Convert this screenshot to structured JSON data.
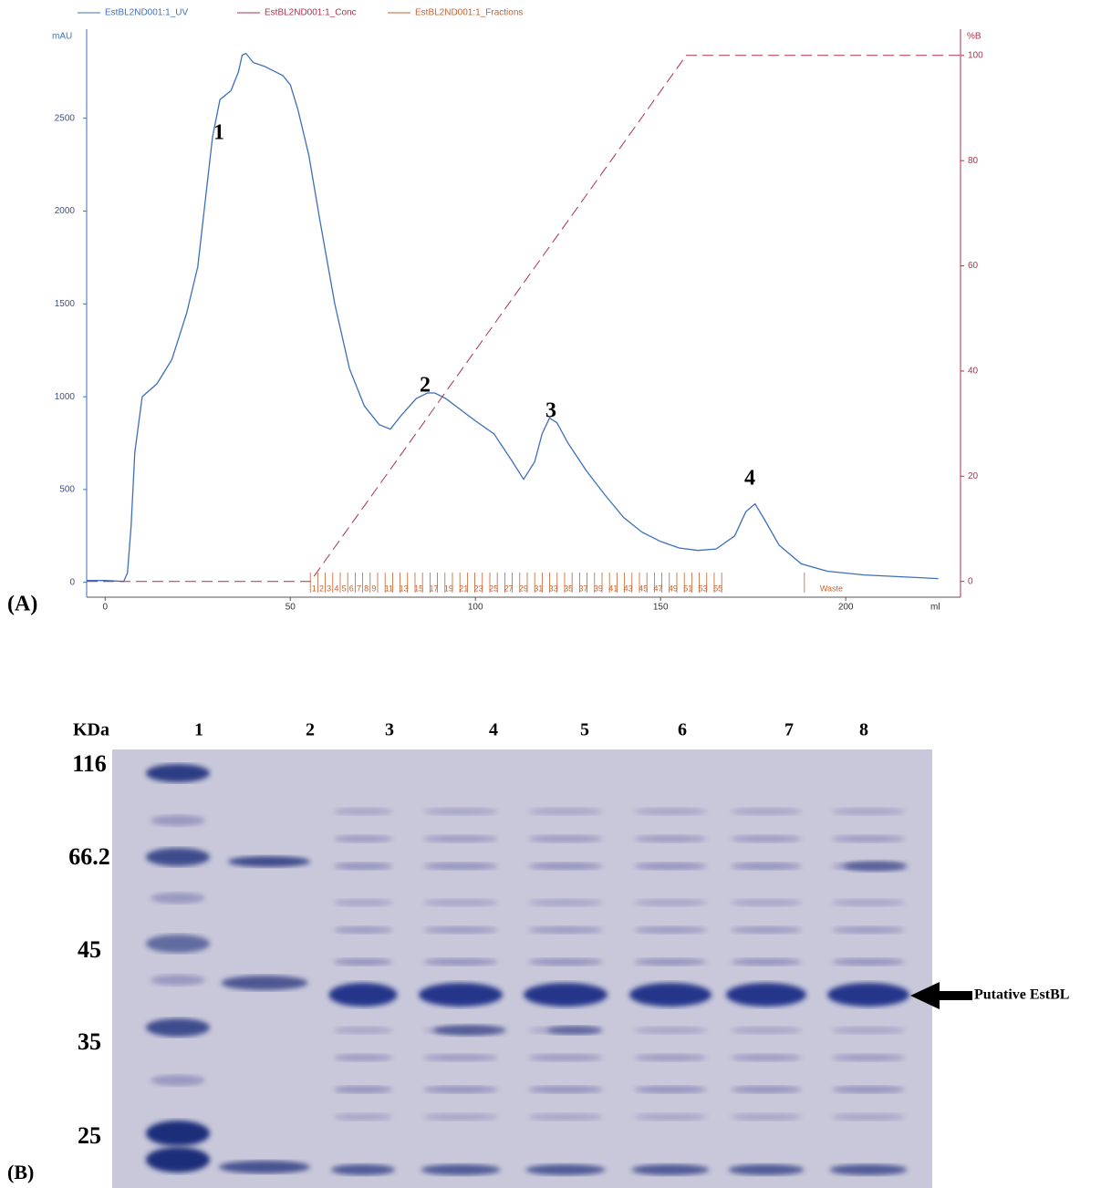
{
  "chart_data": {
    "type": "line",
    "xlabel": "ml",
    "ylabel": "mAU",
    "y2label": "%B",
    "xlim": [
      -5,
      231
    ],
    "ylim": [
      -80,
      2980
    ],
    "y2lim": [
      -3,
      105
    ],
    "xticks": [
      0,
      50,
      100,
      150,
      200
    ],
    "yticks": [
      0,
      500,
      1000,
      1500,
      2000,
      2500
    ],
    "y2ticks": [
      0,
      20,
      40,
      60,
      80,
      100
    ],
    "grid": false,
    "legend": "top",
    "series": [
      {
        "name": "EstBL2ND001:1_UV",
        "color": "#3d6fb8",
        "x": [
          -5,
          0,
          5,
          6,
          7,
          8,
          10,
          14,
          18,
          22,
          25,
          27,
          29,
          31,
          34,
          36,
          37,
          38,
          40,
          43,
          46,
          48,
          50,
          52,
          55,
          58,
          62,
          66,
          70,
          74,
          77,
          80,
          84,
          87,
          89,
          92,
          96,
          100,
          105,
          110,
          113,
          116,
          118,
          120,
          122,
          125,
          130,
          135,
          140,
          145,
          150,
          155,
          160,
          165,
          170,
          173,
          175.5,
          178,
          182,
          188,
          195,
          205,
          215,
          225
        ],
        "values": [
          10,
          10,
          5,
          50,
          300,
          700,
          1000,
          1070,
          1200,
          1450,
          1700,
          2050,
          2400,
          2600,
          2650,
          2750,
          2840,
          2850,
          2800,
          2780,
          2750,
          2730,
          2680,
          2550,
          2300,
          1950,
          1500,
          1150,
          950,
          850,
          825,
          900,
          990,
          1020,
          1020,
          990,
          930,
          870,
          800,
          650,
          555,
          650,
          800,
          885,
          860,
          750,
          600,
          470,
          350,
          270,
          220,
          185,
          172,
          180,
          250,
          380,
          423,
          340,
          200,
          100,
          60,
          40,
          30,
          20
        ]
      },
      {
        "name": "EstBL2ND001:1_Conc",
        "color": "#a8324e",
        "axis": "y2",
        "x": [
          -5,
          55.4,
          156.9,
          231
        ],
        "values": [
          0,
          0,
          100,
          100
        ]
      },
      {
        "name": "EstBL2ND001:1_Fractions",
        "color": "#c4622f",
        "start": 55.4,
        "width": 2.02,
        "labels": [
          1,
          2,
          3,
          4,
          5,
          6,
          7,
          8,
          9,
          11,
          13,
          15,
          17,
          19,
          21,
          23,
          25,
          27,
          29,
          31,
          33,
          35,
          37,
          39,
          41,
          43,
          45,
          47,
          49,
          51,
          53,
          55
        ],
        "waste_label": "Waste",
        "waste_x": 195
      }
    ],
    "annotations": [
      {
        "text": "1"
      },
      {
        "text": "2"
      },
      {
        "text": "3"
      },
      {
        "text": "4"
      }
    ]
  },
  "panel_labels": [
    "(A)",
    "(B)"
  ],
  "gel": {
    "unit_label": "KDa",
    "lanes": [
      1,
      2,
      3,
      4,
      5,
      6,
      7,
      8
    ],
    "markers": [
      116,
      66.2,
      45,
      35,
      25
    ],
    "band_label": "Putative EstBL"
  }
}
